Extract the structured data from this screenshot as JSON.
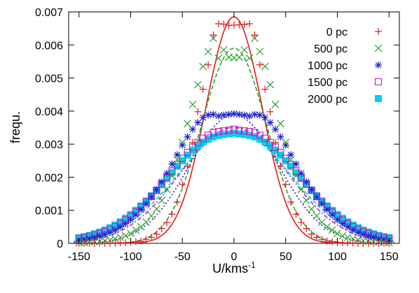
{
  "chart_data": {
    "type": "scatter",
    "xlabel": "U/kms",
    "xlabel_sup": "-1",
    "ylabel": "frequ.",
    "xlim": [
      -160,
      160
    ],
    "ylim": [
      0,
      0.007
    ],
    "xticks": [
      "-150",
      "-100",
      "-50",
      "0",
      "50",
      "100",
      "150"
    ],
    "yticks": [
      "0",
      "0.001",
      "0.002",
      "0.003",
      "0.004",
      "0.005",
      "0.006",
      "0.007"
    ],
    "legend_position": "top-right",
    "series": [
      {
        "name": "0 pc",
        "color": "#e41a1c",
        "marker": "plus",
        "line_style": "solid",
        "peak": 0.00685,
        "sigma": 27.0,
        "x": [
          -150,
          -145,
          -140,
          -135,
          -130,
          -125,
          -120,
          -115,
          -110,
          -105,
          -100,
          -95,
          -90,
          -85,
          -80,
          -75,
          -70,
          -65,
          -60,
          -55,
          -50,
          -45,
          -40,
          -35,
          -30,
          -25,
          -20,
          -15,
          -10,
          -5,
          0,
          5,
          10,
          15,
          20,
          25,
          30,
          35,
          40,
          45,
          50,
          55,
          60,
          65,
          70,
          75,
          80,
          85,
          90,
          95,
          100,
          105,
          110,
          115,
          120,
          125,
          130,
          135,
          140,
          145,
          150
        ],
        "y": [
          0.0,
          0.0,
          0.0,
          0.0,
          0.0,
          0.0,
          0.0,
          1e-05,
          2e-05,
          2e-05,
          3e-05,
          5e-05,
          7e-05,
          0.00012,
          0.00018,
          0.00028,
          0.00045,
          0.00063,
          0.00088,
          0.00125,
          0.00178,
          0.00233,
          0.00305,
          0.00398,
          0.00466,
          0.0054,
          0.0063,
          0.00664,
          0.00663,
          0.00659,
          0.0066,
          0.00661,
          0.00662,
          0.00664,
          0.0063,
          0.0054,
          0.00466,
          0.00398,
          0.00305,
          0.00233,
          0.00178,
          0.00125,
          0.00088,
          0.00063,
          0.00045,
          0.00028,
          0.00018,
          0.00012,
          7e-05,
          5e-05,
          3e-05,
          2e-05,
          2e-05,
          1e-05,
          0.0,
          0.0,
          0.0,
          0.0,
          0.0,
          0.0,
          0.0
        ]
      },
      {
        "name": "500 pc",
        "color": "#2ca02c",
        "marker": "cross",
        "line_style": "dashed",
        "peak": 0.0059,
        "sigma": 31.5,
        "x": [
          -150,
          -145,
          -140,
          -135,
          -130,
          -125,
          -120,
          -115,
          -110,
          -105,
          -100,
          -95,
          -90,
          -85,
          -80,
          -75,
          -70,
          -65,
          -60,
          -55,
          -50,
          -45,
          -40,
          -35,
          -30,
          -25,
          -20,
          -15,
          -10,
          -5,
          0,
          5,
          10,
          15,
          20,
          25,
          30,
          35,
          40,
          45,
          50,
          55,
          60,
          65,
          70,
          75,
          80,
          85,
          90,
          95,
          100,
          105,
          110,
          115,
          120,
          125,
          130,
          135,
          140,
          145,
          150
        ],
        "y": [
          2e-05,
          3e-05,
          4e-05,
          5e-05,
          6e-05,
          8e-05,
          0.0001,
          0.00014,
          0.00018,
          0.00023,
          0.0003,
          0.0004,
          0.0005,
          0.00064,
          0.00083,
          0.00104,
          0.0013,
          0.00163,
          0.00204,
          0.00253,
          0.00305,
          0.00362,
          0.0042,
          0.0048,
          0.00535,
          0.0058,
          0.0062,
          0.0056,
          0.00585,
          0.00563,
          0.00561,
          0.00563,
          0.00585,
          0.0056,
          0.0062,
          0.0058,
          0.00535,
          0.0048,
          0.0042,
          0.00362,
          0.00305,
          0.00253,
          0.00204,
          0.00163,
          0.0013,
          0.00104,
          0.00083,
          0.00064,
          0.0005,
          0.0004,
          0.0003,
          0.00023,
          0.00018,
          0.00014,
          0.0001,
          8e-05,
          6e-05,
          5e-05,
          4e-05,
          3e-05,
          2e-05
        ]
      },
      {
        "name": "1000 pc",
        "color": "#1f1fd1",
        "marker": "star",
        "line_style": "dotted",
        "peak": 0.0039,
        "sigma": 43.0,
        "x": [
          -150,
          -145,
          -140,
          -135,
          -130,
          -125,
          -120,
          -115,
          -110,
          -105,
          -100,
          -95,
          -90,
          -85,
          -80,
          -75,
          -70,
          -65,
          -60,
          -55,
          -50,
          -45,
          -40,
          -35,
          -30,
          -25,
          -20,
          -15,
          -10,
          -5,
          0,
          5,
          10,
          15,
          20,
          25,
          30,
          35,
          40,
          45,
          50,
          55,
          60,
          65,
          70,
          75,
          80,
          85,
          90,
          95,
          100,
          105,
          110,
          115,
          120,
          125,
          130,
          135,
          140,
          145,
          150
        ],
        "y": [
          9e-05,
          0.00011,
          0.00014,
          0.00018,
          0.00022,
          0.00027,
          0.00033,
          0.0004,
          0.0005,
          0.0006,
          0.00072,
          0.00086,
          0.00102,
          0.0012,
          0.0014,
          0.00162,
          0.00186,
          0.00212,
          0.0024,
          0.00268,
          0.00297,
          0.00322,
          0.00345,
          0.00365,
          0.0038,
          0.00388,
          0.0039,
          0.00385,
          0.00388,
          0.0039,
          0.00392,
          0.0039,
          0.00388,
          0.00385,
          0.0039,
          0.00388,
          0.0038,
          0.00365,
          0.00345,
          0.00322,
          0.00297,
          0.00268,
          0.0024,
          0.00212,
          0.00186,
          0.00162,
          0.0014,
          0.0012,
          0.00102,
          0.00086,
          0.00072,
          0.0006,
          0.0005,
          0.0004,
          0.00033,
          0.00027,
          0.00022,
          0.00018,
          0.00014,
          0.00011,
          9e-05
        ]
      },
      {
        "name": "1500 pc",
        "color": "#c51bc5",
        "marker": "open-square",
        "line_style": "dash-dot",
        "peak": 0.0035,
        "sigma": 52.0,
        "x": [
          -150,
          -145,
          -140,
          -135,
          -130,
          -125,
          -120,
          -115,
          -110,
          -105,
          -100,
          -95,
          -90,
          -85,
          -80,
          -75,
          -70,
          -65,
          -60,
          -55,
          -50,
          -45,
          -40,
          -35,
          -30,
          -25,
          -20,
          -15,
          -10,
          -5,
          0,
          5,
          10,
          15,
          20,
          25,
          30,
          35,
          40,
          45,
          50,
          55,
          60,
          65,
          70,
          75,
          80,
          85,
          90,
          95,
          100,
          105,
          110,
          115,
          120,
          125,
          130,
          135,
          140,
          145,
          150
        ],
        "y": [
          0.00015,
          0.00018,
          0.00021,
          0.00025,
          0.0003,
          0.00036,
          0.00043,
          0.00051,
          0.0006,
          0.00071,
          0.00082,
          0.00095,
          0.0011,
          0.00125,
          0.00142,
          0.0016,
          0.0018,
          0.00199,
          0.00219,
          0.00238,
          0.00257,
          0.00275,
          0.00291,
          0.00305,
          0.00318,
          0.00327,
          0.00335,
          0.00338,
          0.0034,
          0.00342,
          0.00345,
          0.00342,
          0.0034,
          0.00338,
          0.00335,
          0.00327,
          0.00318,
          0.00305,
          0.00291,
          0.00275,
          0.00257,
          0.00238,
          0.00219,
          0.00199,
          0.0018,
          0.0016,
          0.00142,
          0.00125,
          0.0011,
          0.00095,
          0.00082,
          0.00071,
          0.0006,
          0.00051,
          0.00043,
          0.00036,
          0.0003,
          0.00025,
          0.00021,
          0.00018,
          0.00015
        ]
      },
      {
        "name": "2000 pc",
        "color": "#00d0e8",
        "marker": "filled-square",
        "line_style": "dashed",
        "peak": 0.0034,
        "sigma": 55.0,
        "x": [
          -150,
          -145,
          -140,
          -135,
          -130,
          -125,
          -120,
          -115,
          -110,
          -105,
          -100,
          -95,
          -90,
          -85,
          -80,
          -75,
          -70,
          -65,
          -60,
          -55,
          -50,
          -45,
          -40,
          -35,
          -30,
          -25,
          -20,
          -15,
          -10,
          -5,
          0,
          5,
          10,
          15,
          20,
          25,
          30,
          35,
          40,
          45,
          50,
          55,
          60,
          65,
          70,
          75,
          80,
          85,
          90,
          95,
          100,
          105,
          110,
          115,
          120,
          125,
          130,
          135,
          140,
          145,
          150
        ],
        "y": [
          0.00017,
          0.0002,
          0.00024,
          0.00029,
          0.00034,
          0.0004,
          0.00047,
          0.00055,
          0.00065,
          0.00076,
          0.00087,
          0.001,
          0.00113,
          0.00128,
          0.00144,
          0.00161,
          0.00178,
          0.00196,
          0.00214,
          0.00233,
          0.0025,
          0.00267,
          0.00282,
          0.00295,
          0.00306,
          0.00315,
          0.00322,
          0.00326,
          0.00329,
          0.00331,
          0.00333,
          0.00331,
          0.00329,
          0.00326,
          0.00322,
          0.00315,
          0.00306,
          0.00295,
          0.00282,
          0.00267,
          0.0025,
          0.00233,
          0.00214,
          0.00196,
          0.00178,
          0.00161,
          0.00144,
          0.00128,
          0.00113,
          0.001,
          0.00087,
          0.00076,
          0.00065,
          0.00055,
          0.00047,
          0.0004,
          0.00034,
          0.00029,
          0.00024,
          0.0002,
          0.00017
        ]
      }
    ]
  }
}
